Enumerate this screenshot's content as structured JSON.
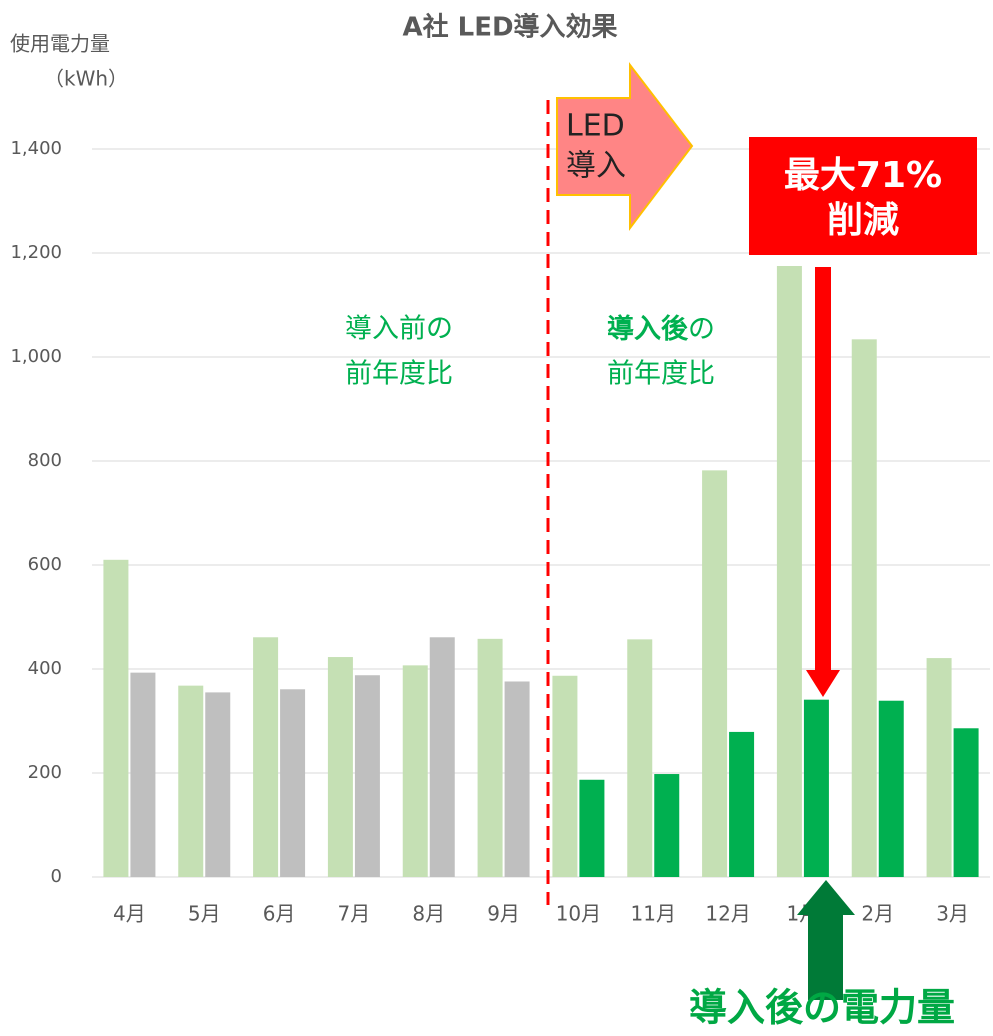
{
  "chart_data": {
    "type": "bar",
    "title": "A社 LED導入効果",
    "y_label": [
      "使用電力量",
      "（kWh）"
    ],
    "categories": [
      "4月",
      "5月",
      "6月",
      "7月",
      "8月",
      "9月",
      "10月",
      "11月",
      "12月",
      "1月",
      "2月",
      "3月"
    ],
    "series": [
      {
        "color": "#c5e0b4",
        "values": [
          610,
          368,
          461,
          423,
          407,
          458,
          387,
          457,
          782,
          1175,
          1034,
          421
        ]
      },
      {
        "colors": [
          "#bfbfbf",
          "#bfbfbf",
          "#bfbfbf",
          "#bfbfbf",
          "#bfbfbf",
          "#bfbfbf",
          "#00b050",
          "#00b050",
          "#00b050",
          "#00b050",
          "#00b050",
          "#00b050"
        ],
        "values": [
          393,
          355,
          361,
          388,
          461,
          376,
          187,
          198,
          279,
          341,
          339,
          286
        ]
      }
    ],
    "ylim": [
      0,
      1400
    ],
    "yticks": [
      0,
      200,
      400,
      600,
      800,
      {
        "value": 1000,
        "label": "1,000"
      },
      {
        "value": 1200,
        "label": "1,200"
      },
      {
        "value": 1400,
        "label": "1,400"
      }
    ],
    "grid": true,
    "annotations": {
      "led": [
        "LED",
        "導入"
      ],
      "reduction": [
        "最大71%",
        "削減"
      ],
      "before_note": [
        "導入前の",
        "前年度比"
      ],
      "after_note": {
        "bold": "導入後",
        "rest": "の",
        "line2": "前年度比"
      },
      "result": "導入後の電力量"
    }
  }
}
